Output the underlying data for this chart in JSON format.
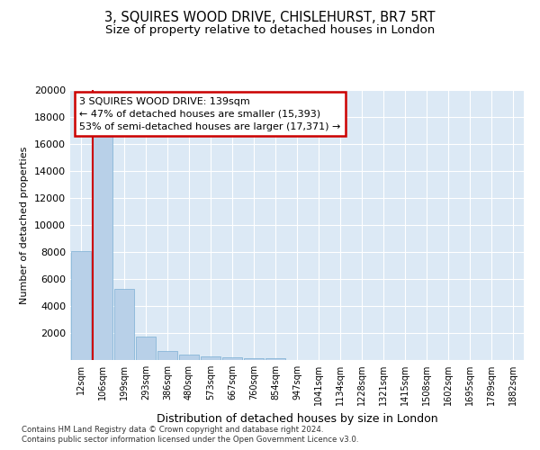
{
  "title": "3, SQUIRES WOOD DRIVE, CHISLEHURST, BR7 5RT",
  "subtitle": "Size of property relative to detached houses in London",
  "xlabel": "Distribution of detached houses by size in London",
  "ylabel": "Number of detached properties",
  "categories": [
    "12sqm",
    "106sqm",
    "199sqm",
    "293sqm",
    "386sqm",
    "480sqm",
    "573sqm",
    "667sqm",
    "760sqm",
    "854sqm",
    "947sqm",
    "1041sqm",
    "1134sqm",
    "1228sqm",
    "1321sqm",
    "1415sqm",
    "1508sqm",
    "1602sqm",
    "1695sqm",
    "1789sqm",
    "1882sqm"
  ],
  "values": [
    8100,
    16700,
    5300,
    1750,
    700,
    370,
    270,
    210,
    160,
    130,
    0,
    0,
    0,
    0,
    0,
    0,
    0,
    0,
    0,
    0,
    0
  ],
  "bar_color": "#b8d0e8",
  "bar_edge_color": "#7aafd4",
  "annotation_text": "3 SQUIRES WOOD DRIVE: 139sqm\n← 47% of detached houses are smaller (15,393)\n53% of semi-detached houses are larger (17,371) →",
  "annotation_box_color": "#ffffff",
  "annotation_border_color": "#cc0000",
  "red_line_color": "#cc0000",
  "ylim": [
    0,
    20000
  ],
  "yticks": [
    0,
    2000,
    4000,
    6000,
    8000,
    10000,
    12000,
    14000,
    16000,
    18000,
    20000
  ],
  "plot_bg_color": "#dce9f5",
  "grid_color": "#ffffff",
  "footer_line1": "Contains HM Land Registry data © Crown copyright and database right 2024.",
  "footer_line2": "Contains public sector information licensed under the Open Government Licence v3.0.",
  "title_fontsize": 10.5,
  "subtitle_fontsize": 9.5,
  "xlabel_fontsize": 9,
  "ylabel_fontsize": 8
}
